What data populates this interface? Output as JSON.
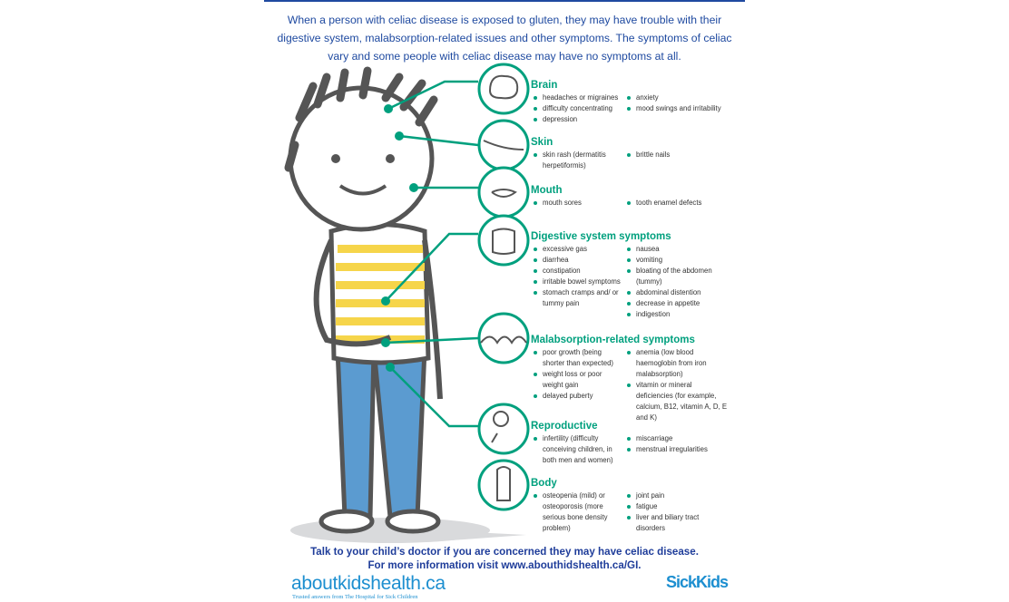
{
  "intro": "When a person with celiac disease is exposed to gluten, they may have trouble with their digestive system, malabsorption-related issues and other symptoms. The symptoms of celiac vary and some people with celiac disease may have no symptoms at all.",
  "colors": {
    "accent": "#00a07e",
    "text_blue": "#1f4aa0",
    "logo_blue": "#1d8fd0",
    "shirt_yellow": "#f6d54a",
    "pants_blue": "#5b9bd0"
  },
  "sections": [
    {
      "title": "Brain",
      "icon": "brain-icon",
      "col1": [
        "headaches or migraines",
        "difficulty concentrating",
        "depression"
      ],
      "col2": [
        "anxiety",
        "mood swings and irritability"
      ]
    },
    {
      "title": "Skin",
      "icon": "skin-icon",
      "col1": [
        "skin rash (dermatitis herpetiformis)"
      ],
      "col2": [
        "brittle nails"
      ]
    },
    {
      "title": "Mouth",
      "icon": "mouth-icon",
      "col1": [
        "mouth sores"
      ],
      "col2": [
        "tooth enamel defects"
      ]
    },
    {
      "title": "Digestive system symptoms",
      "icon": "intestine-icon",
      "col1": [
        "excessive gas",
        "diarrhea",
        "constipation",
        "irritable bowel symptoms",
        "stomach cramps and/ or tummy pain"
      ],
      "col2": [
        "nausea",
        "vomiting",
        "bloating of the abdomen (tummy)",
        "abdominal distention",
        "decrease in appetite",
        "indigestion"
      ]
    },
    {
      "title": "Malabsorption-related symptoms",
      "icon": "intestinal-villi-icon",
      "col1": [
        "poor growth (being shorter than expected)",
        "weight loss or poor weight gain",
        "delayed puberty"
      ],
      "col2": [
        "anemia (low blood haemoglobin from iron malabsorption)",
        "vitamin or mineral deficiencies (for example, calcium, B12, vitamin A, D, E and K)"
      ]
    },
    {
      "title": "Reproductive",
      "icon": "egg-sperm-icon",
      "col1": [
        "infertility (difficulty conceiving children, in both men and women)"
      ],
      "col2": [
        "miscarriage",
        "menstrual irregularities"
      ]
    },
    {
      "title": "Body",
      "icon": "body-icon",
      "col1": [
        "osteopenia (mild) or osteoporosis (more serious bone density problem)"
      ],
      "col2": [
        "joint pain",
        "fatigue",
        "liver and biliary tract disorders"
      ]
    }
  ],
  "footer": {
    "line1": "Talk to your child’s doctor if you are concerned they may have celiac disease.",
    "line2": "For more information visit www.abouthidshealth.ca/GI."
  },
  "logo": {
    "text": "aboutkidshealth.ca",
    "tagline": "Trusted answers from The Hospital for Sick Children"
  },
  "sickkids": "SickKids"
}
